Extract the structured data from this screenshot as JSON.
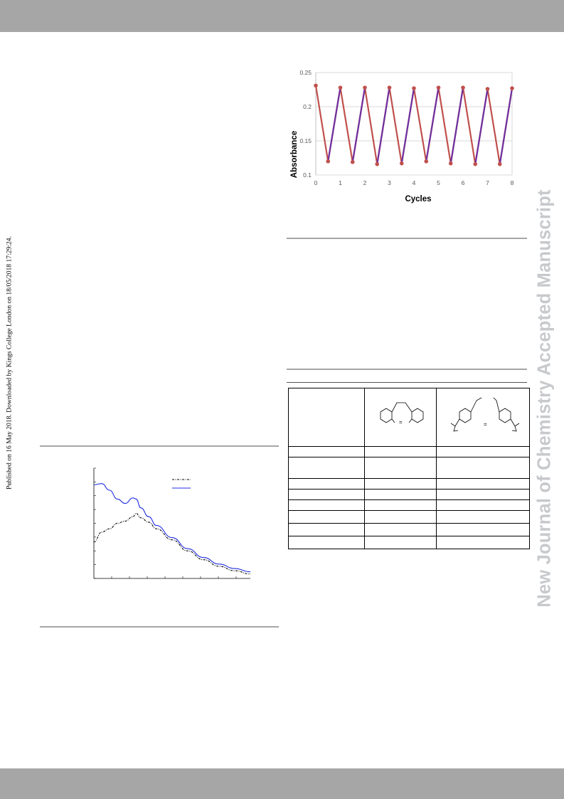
{
  "header": {
    "band_color": "#a6a6a6"
  },
  "side_note": {
    "text": "Published on 16 May 2018. Downloaded by Kings College London on 18/05/2018 17:29:24."
  },
  "watermark": {
    "text": "New Journal of Chemistry Accepted Manuscript",
    "color": "#c7c9cc"
  },
  "chart_data": [
    {
      "type": "line",
      "title": "",
      "xlabel": "Cycles",
      "ylabel": "Absorbance",
      "xlim": [
        0,
        8
      ],
      "ylim": [
        0.1,
        0.25
      ],
      "x_ticks": [
        "0",
        "1",
        "2",
        "3",
        "4",
        "5",
        "6",
        "7",
        "8"
      ],
      "y_ticks": [
        "0.25",
        "0.2",
        "0.15",
        "0.1"
      ],
      "grid": true,
      "series": [
        {
          "color": "#c0504d",
          "marker": "circle",
          "points": [
            [
              0,
              0.231
            ],
            [
              0.5,
              0.12
            ],
            [
              1,
              0.228
            ],
            [
              1.5,
              0.119
            ],
            [
              2,
              0.228
            ],
            [
              2.5,
              0.116
            ],
            [
              3,
              0.228
            ],
            [
              3.5,
              0.117
            ],
            [
              4,
              0.227
            ],
            [
              4.5,
              0.12
            ],
            [
              5,
              0.228
            ],
            [
              5.5,
              0.117
            ],
            [
              6,
              0.228
            ],
            [
              6.5,
              0.116
            ],
            [
              7,
              0.226
            ],
            [
              7.5,
              0.116
            ],
            [
              8,
              0.227
            ]
          ]
        },
        {
          "color": "#7030a0",
          "segments": [
            [
              [
                0.5,
                0.12
              ],
              [
                1,
                0.228
              ]
            ],
            [
              [
                1.5,
                0.119
              ],
              [
                2,
                0.228
              ]
            ],
            [
              [
                2.5,
                0.116
              ],
              [
                3,
                0.228
              ]
            ],
            [
              [
                3.5,
                0.117
              ],
              [
                4,
                0.227
              ]
            ],
            [
              [
                4.5,
                0.12
              ],
              [
                5,
                0.228
              ]
            ],
            [
              [
                5.5,
                0.117
              ],
              [
                6,
                0.228
              ]
            ],
            [
              [
                6.5,
                0.116
              ],
              [
                7,
                0.226
              ]
            ],
            [
              [
                7.5,
                0.116
              ],
              [
                8,
                0.227
              ]
            ]
          ]
        }
      ]
    },
    {
      "type": "line",
      "title": "",
      "xlabel": "",
      "ylabel": "",
      "grid": false,
      "legend": "top-right",
      "series": [
        {
          "style": "dash-dot",
          "color": "#000000",
          "points": [
            [
              0,
              0.33
            ],
            [
              0.05,
              0.42
            ],
            [
              0.1,
              0.45
            ],
            [
              0.15,
              0.5
            ],
            [
              0.2,
              0.52
            ],
            [
              0.25,
              0.56
            ],
            [
              0.27,
              0.59
            ],
            [
              0.3,
              0.55
            ],
            [
              0.35,
              0.51
            ],
            [
              0.4,
              0.45
            ],
            [
              0.5,
              0.35
            ],
            [
              0.6,
              0.25
            ],
            [
              0.7,
              0.17
            ],
            [
              0.8,
              0.11
            ],
            [
              0.9,
              0.07
            ],
            [
              1,
              0.04
            ]
          ]
        },
        {
          "style": "solid",
          "color": "#1f2de0",
          "points": [
            [
              0,
              0.85
            ],
            [
              0.05,
              0.86
            ],
            [
              0.1,
              0.8
            ],
            [
              0.15,
              0.72
            ],
            [
              0.2,
              0.68
            ],
            [
              0.25,
              0.73
            ],
            [
              0.27,
              0.72
            ],
            [
              0.3,
              0.64
            ],
            [
              0.35,
              0.56
            ],
            [
              0.4,
              0.48
            ],
            [
              0.5,
              0.37
            ],
            [
              0.6,
              0.27
            ],
            [
              0.7,
              0.19
            ],
            [
              0.8,
              0.13
            ],
            [
              0.9,
              0.09
            ],
            [
              1,
              0.06
            ]
          ]
        }
      ]
    }
  ],
  "table": {
    "columns": [
      "",
      "",
      ""
    ],
    "rows": [
      [
        "",
        "",
        ""
      ],
      [
        "",
        "",
        ""
      ],
      [
        "",
        "",
        ""
      ],
      [
        "",
        "",
        ""
      ],
      [
        "",
        "",
        ""
      ],
      [
        "",
        "",
        ""
      ],
      [
        "",
        "",
        ""
      ],
      [
        "",
        "",
        ""
      ]
    ]
  }
}
